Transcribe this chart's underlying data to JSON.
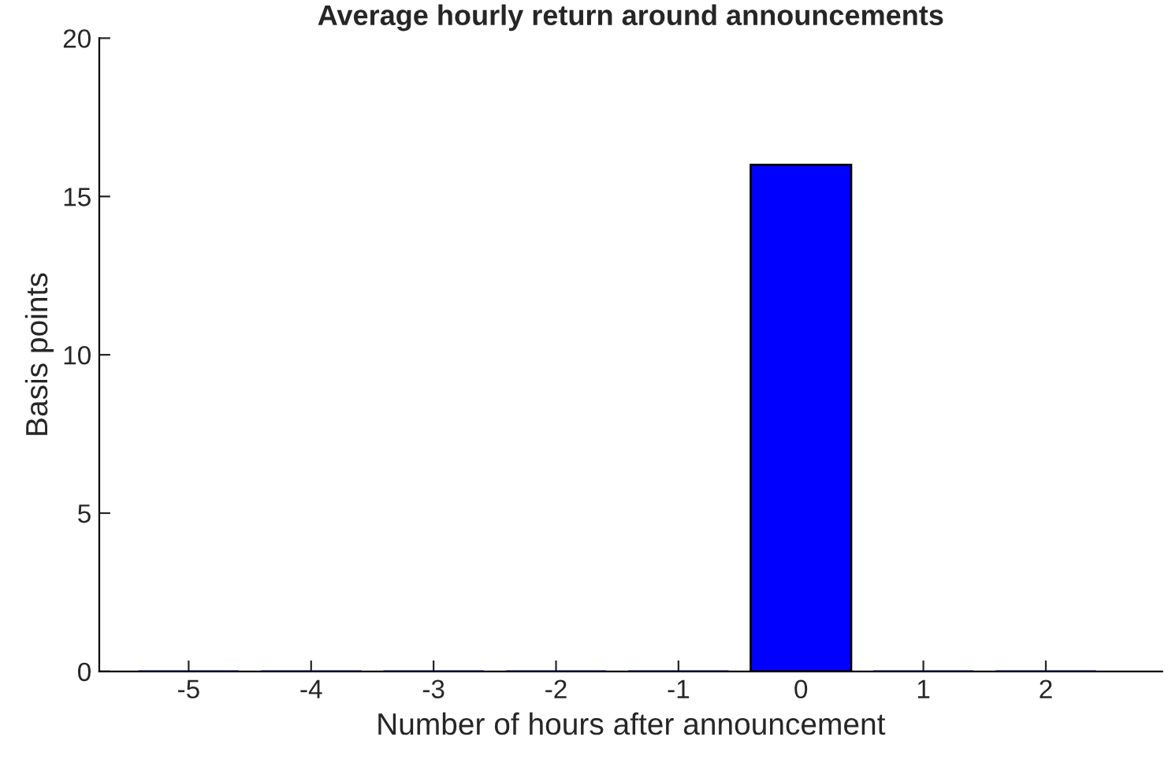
{
  "chart_data": {
    "type": "bar",
    "title": "Average hourly return around announcements",
    "xlabel": "Number of hours after announcement",
    "ylabel": "Basis points",
    "categories": [
      "-5",
      "-4",
      "-3",
      "-2",
      "-1",
      "0",
      "1",
      "2"
    ],
    "values": [
      0,
      0,
      0,
      0,
      0,
      16,
      0,
      0
    ],
    "color": "#0000ff",
    "ylim": [
      0,
      20
    ],
    "yticks": [
      0,
      5,
      10,
      15,
      20
    ],
    "grid": false,
    "legend": false
  }
}
